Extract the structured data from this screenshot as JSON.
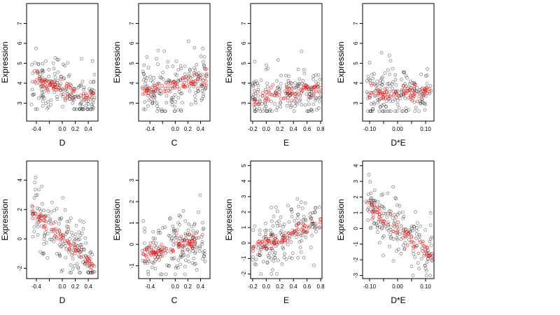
{
  "chart_data": [
    {
      "type": "scatter",
      "xlabel": "D",
      "ylabel": "Expression",
      "xlim": [
        -0.55,
        0.55
      ],
      "ylim": [
        2.1,
        8.0
      ],
      "xticks": [
        -0.4,
        -0.2,
        0.0,
        0.2,
        0.4
      ],
      "xtick_labels": [
        "-0.4",
        "",
        "0.0",
        "0.2",
        "0.4"
      ],
      "yticks": [
        3,
        4,
        5,
        6,
        7
      ],
      "ytick_labels": [
        "3",
        "4",
        "5",
        "6",
        "7"
      ],
      "series_colors": {
        "observed": "#000000",
        "fitted": "#ff0000"
      },
      "point_summary": {
        "observed_x_range": [
          -0.48,
          0.5
        ],
        "observed_y_range": [
          2.7,
          7.7
        ],
        "fitted_trend": "decreasing",
        "fitted_y_at_x_min": 4.2,
        "fitted_y_at_x_max": 3.2
      }
    },
    {
      "type": "scatter",
      "xlabel": "C",
      "ylabel": "Expression",
      "xlim": [
        -0.58,
        0.55
      ],
      "ylim": [
        2.1,
        8.0
      ],
      "xticks": [
        -0.4,
        -0.2,
        0.0,
        0.2,
        0.4
      ],
      "xtick_labels": [
        "-0.4",
        "",
        "0.0",
        "0.2",
        "0.4"
      ],
      "yticks": [
        3,
        4,
        5,
        6,
        7
      ],
      "ytick_labels": [
        "3",
        "4",
        "5",
        "6",
        "7"
      ],
      "series_colors": {
        "observed": "#000000",
        "fitted": "#ff0000"
      },
      "point_summary": {
        "observed_x_range": [
          -0.52,
          0.5
        ],
        "observed_y_range": [
          2.6,
          7.6
        ],
        "fitted_trend": "slightly increasing",
        "fitted_y_at_x_min": 3.6,
        "fitted_y_at_x_max": 4.2
      }
    },
    {
      "type": "scatter",
      "xlabel": "E",
      "ylabel": "Expression",
      "xlim": [
        -0.23,
        0.82
      ],
      "ylim": [
        2.1,
        8.0
      ],
      "xticks": [
        -0.2,
        0.0,
        0.2,
        0.4,
        0.6,
        0.8
      ],
      "xtick_labels": [
        "-0.2",
        "0.0",
        "0.2",
        "0.4",
        "0.6",
        "0.8"
      ],
      "yticks": [
        3,
        4,
        5,
        6,
        7
      ],
      "ytick_labels": [
        "3",
        "4",
        "5",
        "6",
        "7"
      ],
      "series_colors": {
        "observed": "#000000",
        "fitted": "#ff0000"
      },
      "point_summary": {
        "observed_x_range": [
          -0.2,
          0.8
        ],
        "observed_y_range": [
          2.6,
          7.7
        ],
        "fitted_trend": "increasing",
        "fitted_y_at_x_min": 3.3,
        "fitted_y_at_x_max": 3.8
      }
    },
    {
      "type": "scatter",
      "xlabel": "D*E",
      "ylabel": "Expression",
      "xlim": [
        -0.125,
        0.13
      ],
      "ylim": [
        2.1,
        8.0
      ],
      "xticks": [
        -0.1,
        -0.05,
        0.0,
        0.05,
        0.1
      ],
      "xtick_labels": [
        "-0.10",
        "",
        "0.00",
        "",
        "0.10"
      ],
      "yticks": [
        3,
        4,
        5,
        6,
        7
      ],
      "ytick_labels": [
        "3",
        "4",
        "5",
        "6",
        "7"
      ],
      "series_colors": {
        "observed": "#000000",
        "fitted": "#ff0000"
      },
      "point_summary": {
        "observed_x_range": [
          -0.11,
          0.12
        ],
        "observed_y_range": [
          2.6,
          7.7
        ],
        "fitted_trend": "clustered near zero",
        "fitted_y_at_x_min": 3.4,
        "fitted_y_at_x_max": 3.6
      }
    },
    {
      "type": "scatter",
      "xlabel": "D",
      "ylabel": "Expression",
      "xlim": [
        -0.55,
        0.55
      ],
      "ylim": [
        -2.7,
        5.3
      ],
      "xticks": [
        -0.4,
        -0.2,
        0.0,
        0.2,
        0.4
      ],
      "xtick_labels": [
        "-0.4",
        "",
        "0.0",
        "0.2",
        "0.4"
      ],
      "yticks": [
        -2,
        0,
        2,
        4
      ],
      "ytick_labels": [
        "-2",
        "0",
        "2",
        "4"
      ],
      "series_colors": {
        "observed": "#000000",
        "fitted": "#ff0000"
      },
      "point_summary": {
        "observed_x_range": [
          -0.48,
          0.5
        ],
        "observed_y_range": [
          -2.3,
          4.9
        ],
        "fitted_trend": "decreasing",
        "fitted_y_at_x_min": 1.9,
        "fitted_y_at_x_max": -1.9
      }
    },
    {
      "type": "scatter",
      "xlabel": "C",
      "ylabel": "Expression",
      "xlim": [
        -0.58,
        0.55
      ],
      "ylim": [
        -1.6,
        3.9
      ],
      "xticks": [
        -0.4,
        -0.2,
        0.0,
        0.2,
        0.4
      ],
      "xtick_labels": [
        "-0.4",
        "",
        "0.0",
        "0.2",
        "0.4"
      ],
      "yticks": [
        -1,
        0,
        1,
        2,
        3
      ],
      "ytick_labels": [
        "-1",
        "0",
        "1",
        "2",
        "3"
      ],
      "series_colors": {
        "observed": "#000000",
        "fitted": "#ff0000"
      },
      "point_summary": {
        "observed_x_range": [
          -0.52,
          0.5
        ],
        "observed_y_range": [
          -1.4,
          3.7
        ],
        "fitted_trend": "slightly increasing",
        "fitted_y_at_x_min": -0.5,
        "fitted_y_at_x_max": 0.3
      }
    },
    {
      "type": "scatter",
      "xlabel": "E",
      "ylabel": "Expression",
      "xlim": [
        -0.23,
        0.82
      ],
      "ylim": [
        -2.3,
        5.3
      ],
      "xticks": [
        -0.2,
        0.0,
        0.2,
        0.4,
        0.6,
        0.8
      ],
      "xtick_labels": [
        "-0.2",
        "0.0",
        "0.2",
        "0.4",
        "0.6",
        "0.8"
      ],
      "yticks": [
        -2,
        -1,
        0,
        1,
        2,
        3,
        4,
        5
      ],
      "ytick_labels": [
        "-2",
        "-1",
        "0",
        "1",
        "2",
        "3",
        "4",
        "5"
      ],
      "series_colors": {
        "observed": "#000000",
        "fitted": "#ff0000"
      },
      "point_summary": {
        "observed_x_range": [
          -0.2,
          0.8
        ],
        "observed_y_range": [
          -2.0,
          5.0
        ],
        "fitted_trend": "increasing",
        "fitted_y_at_x_min": -0.5,
        "fitted_y_at_x_max": 1.5
      }
    },
    {
      "type": "scatter",
      "xlabel": "D*E",
      "ylabel": "Expression",
      "xlim": [
        -0.125,
        0.13
      ],
      "ylim": [
        -3.2,
        4.3
      ],
      "xticks": [
        -0.1,
        -0.05,
        0.0,
        0.05,
        0.1
      ],
      "xtick_labels": [
        "-0.10",
        "",
        "0.00",
        "",
        "0.10"
      ],
      "yticks": [
        -3,
        -2,
        -1,
        0,
        1,
        2,
        3,
        4
      ],
      "ytick_labels": [
        "-3",
        "-2",
        "-1",
        "0",
        "1",
        "2",
        "3",
        "4"
      ],
      "series_colors": {
        "observed": "#000000",
        "fitted": "#ff0000"
      },
      "point_summary": {
        "observed_x_range": [
          -0.115,
          0.125
        ],
        "observed_y_range": [
          -3.0,
          3.9
        ],
        "fitted_trend": "decreasing",
        "fitted_y_at_x_min": 1.6,
        "fitted_y_at_x_max": -1.8
      }
    }
  ]
}
